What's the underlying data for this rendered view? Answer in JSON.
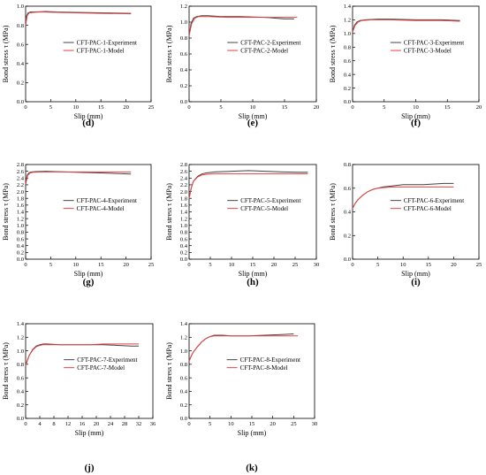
{
  "chart_data": [
    {
      "type": "line",
      "panel_label": "(d)",
      "xlabel": "Slip (mm)",
      "ylabel": "Bond stress τ (MPa)",
      "xlim": [
        0,
        25
      ],
      "ylim": [
        0,
        1.0
      ],
      "xticks": [
        0,
        5,
        10,
        15,
        20,
        25
      ],
      "yticks": [
        0.0,
        0.2,
        0.4,
        0.6,
        0.8,
        1.0
      ],
      "xtick_labels": [
        "0",
        "5",
        "10",
        "15",
        "20",
        "25"
      ],
      "ytick_labels": [
        "0.0",
        "0.2",
        "0.4",
        "0.6",
        "0.8",
        "1.0"
      ],
      "legend_position": "center-right",
      "series": [
        {
          "name": "CFT-PAC-1-Experiment",
          "color": "#444444",
          "x": [
            0,
            0.2,
            0.5,
            1,
            2,
            4,
            6,
            10,
            15,
            21
          ],
          "y": [
            0.78,
            0.9,
            0.93,
            0.94,
            0.94,
            0.945,
            0.94,
            0.935,
            0.93,
            0.925
          ]
        },
        {
          "name": "CFT-PAC-1-Model",
          "color": "#e84040",
          "x": [
            0,
            0.3,
            0.7,
            1.5,
            3,
            6,
            10,
            15,
            21
          ],
          "y": [
            0.8,
            0.9,
            0.93,
            0.935,
            0.94,
            0.935,
            0.93,
            0.925,
            0.92
          ]
        }
      ]
    },
    {
      "type": "line",
      "panel_label": "(e)",
      "xlabel": "Slip (mm)",
      "ylabel": "Bond stress τ (MPa)",
      "xlim": [
        0,
        20
      ],
      "ylim": [
        0,
        1.2
      ],
      "xticks": [
        0,
        5,
        10,
        15,
        20
      ],
      "yticks": [
        0.0,
        0.2,
        0.4,
        0.6,
        0.8,
        1.0,
        1.2
      ],
      "xtick_labels": [
        "0",
        "5",
        "10",
        "15",
        "20"
      ],
      "ytick_labels": [
        "0.0",
        "0.2",
        "0.4",
        "0.6",
        "0.8",
        "1.0",
        "1.2"
      ],
      "legend_position": "center-right",
      "series": [
        {
          "name": "CFT-PAC-2-Experiment",
          "color": "#444444",
          "x": [
            0,
            0.3,
            0.7,
            1.2,
            2,
            3,
            5,
            8,
            12,
            15,
            16.5
          ],
          "y": [
            0.82,
            0.98,
            1.05,
            1.07,
            1.08,
            1.08,
            1.07,
            1.07,
            1.06,
            1.04,
            1.04
          ]
        },
        {
          "name": "CFT-PAC-2-Model",
          "color": "#e84040",
          "x": [
            0,
            0.4,
            0.9,
            1.5,
            3,
            6,
            10,
            14,
            17
          ],
          "y": [
            0.83,
            0.98,
            1.05,
            1.07,
            1.07,
            1.06,
            1.06,
            1.06,
            1.06
          ]
        }
      ]
    },
    {
      "type": "line",
      "panel_label": "(f)",
      "xlabel": "Slip (mm)",
      "ylabel": "Bond stress τ (MPa)",
      "xlim": [
        0,
        20
      ],
      "ylim": [
        0,
        1.4
      ],
      "xticks": [
        0,
        5,
        10,
        15,
        20
      ],
      "yticks": [
        0.0,
        0.2,
        0.4,
        0.6,
        0.8,
        1.0,
        1.2,
        1.4
      ],
      "xtick_labels": [
        "0",
        "5",
        "10",
        "15",
        "20"
      ],
      "ytick_labels": [
        "0.0",
        "0.2",
        "0.4",
        "0.6",
        "0.8",
        "1.0",
        "1.2",
        "1.4"
      ],
      "legend_position": "center-right",
      "series": [
        {
          "name": "CFT-PAC-3-Experiment",
          "color": "#444444",
          "x": [
            0,
            0.3,
            0.7,
            1.2,
            2,
            4,
            6,
            10,
            14,
            17
          ],
          "y": [
            1.02,
            1.12,
            1.17,
            1.19,
            1.2,
            1.21,
            1.21,
            1.2,
            1.2,
            1.19
          ]
        },
        {
          "name": "CFT-PAC-3-Model",
          "color": "#e84040",
          "x": [
            0,
            0.4,
            0.9,
            1.5,
            3,
            6,
            10,
            14,
            17
          ],
          "y": [
            1.02,
            1.12,
            1.17,
            1.19,
            1.2,
            1.2,
            1.19,
            1.19,
            1.18
          ]
        }
      ]
    },
    {
      "type": "line",
      "panel_label": "(g)",
      "xlabel": "Slip (mm)",
      "ylabel": "Bond stress τ (MPa)",
      "xlim": [
        0,
        25
      ],
      "ylim": [
        0,
        2.8
      ],
      "xticks": [
        0,
        5,
        10,
        15,
        20,
        25
      ],
      "yticks": [
        0.0,
        0.2,
        0.4,
        0.6,
        0.8,
        1.0,
        1.2,
        1.4,
        1.6,
        1.8,
        2.0,
        2.2,
        2.4,
        2.6,
        2.8
      ],
      "xtick_labels": [
        "0",
        "5",
        "10",
        "15",
        "20",
        "25"
      ],
      "ytick_labels": [
        "0.0",
        "0.2",
        "0.4",
        "0.6",
        "0.8",
        "1.0",
        "1.2",
        "1.4",
        "1.6",
        "1.8",
        "2.0",
        "2.2",
        "2.4",
        "2.6",
        "2.8"
      ],
      "legend_position": "center-right",
      "series": [
        {
          "name": "CFT-PAC-4-Experiment",
          "color": "#444444",
          "x": [
            0,
            0.3,
            0.7,
            1.2,
            2,
            4,
            6,
            10,
            15,
            21
          ],
          "y": [
            2.2,
            2.48,
            2.56,
            2.58,
            2.59,
            2.6,
            2.59,
            2.57,
            2.55,
            2.52
          ]
        },
        {
          "name": "CFT-PAC-4-Model",
          "color": "#e84040",
          "x": [
            0,
            0.4,
            0.9,
            1.5,
            3,
            6,
            10,
            15,
            21
          ],
          "y": [
            2.22,
            2.48,
            2.55,
            2.57,
            2.58,
            2.58,
            2.58,
            2.58,
            2.58
          ]
        }
      ]
    },
    {
      "type": "line",
      "panel_label": "(h)",
      "xlabel": "Slip (mm)",
      "ylabel": "Bond stress τ (MPa)",
      "xlim": [
        0,
        30
      ],
      "ylim": [
        0,
        2.8
      ],
      "xticks": [
        0,
        5,
        10,
        15,
        20,
        25,
        30
      ],
      "yticks": [
        0.0,
        0.2,
        0.4,
        0.6,
        0.8,
        1.0,
        1.2,
        1.4,
        1.6,
        1.8,
        2.0,
        2.2,
        2.4,
        2.6,
        2.8
      ],
      "xtick_labels": [
        "0",
        "5",
        "10",
        "15",
        "20",
        "25",
        "30"
      ],
      "ytick_labels": [
        "0.0",
        "0.2",
        "0.4",
        "0.6",
        "0.8",
        "1.0",
        "1.2",
        "1.4",
        "1.6",
        "1.8",
        "2.0",
        "2.2",
        "2.4",
        "2.6",
        "2.8"
      ],
      "legend_position": "center-right",
      "series": [
        {
          "name": "CFT-PAC-5-Experiment",
          "color": "#444444",
          "x": [
            0,
            0.5,
            1,
            2,
            3,
            4,
            6,
            10,
            14,
            18,
            22,
            26,
            28
          ],
          "y": [
            1.8,
            2.1,
            2.3,
            2.45,
            2.52,
            2.55,
            2.58,
            2.6,
            2.62,
            2.6,
            2.58,
            2.57,
            2.57
          ]
        },
        {
          "name": "CFT-PAC-5-Model",
          "color": "#e84040",
          "x": [
            0,
            0.5,
            1,
            2,
            3,
            4,
            6,
            10,
            15,
            20,
            25,
            28
          ],
          "y": [
            1.8,
            2.1,
            2.3,
            2.43,
            2.49,
            2.51,
            2.53,
            2.53,
            2.53,
            2.53,
            2.53,
            2.53
          ]
        }
      ]
    },
    {
      "type": "line",
      "panel_label": "(i)",
      "xlabel": "Slip (mm)",
      "ylabel": "Bond stress τ (MPa)",
      "xlim": [
        0,
        25
      ],
      "ylim": [
        0,
        0.8
      ],
      "xticks": [
        0,
        5,
        10,
        15,
        20,
        25
      ],
      "yticks": [
        0.0,
        0.2,
        0.4,
        0.6,
        0.8
      ],
      "xtick_labels": [
        "0",
        "5",
        "10",
        "15",
        "20",
        "25"
      ],
      "ytick_labels": [
        "0.0",
        "0.2",
        "0.4",
        "0.6",
        "0.8"
      ],
      "legend_position": "center-right",
      "series": [
        {
          "name": "CFT-PAC-6-Experiment",
          "color": "#444444",
          "x": [
            0,
            0.5,
            1,
            2,
            3,
            4,
            5,
            6,
            8,
            10,
            14,
            18,
            20
          ],
          "y": [
            0.43,
            0.47,
            0.5,
            0.54,
            0.57,
            0.59,
            0.6,
            0.61,
            0.62,
            0.63,
            0.63,
            0.64,
            0.64
          ]
        },
        {
          "name": "CFT-PAC-6-Model",
          "color": "#e84040",
          "x": [
            0,
            0.5,
            1,
            2,
            3,
            4,
            5,
            6,
            8,
            10,
            14,
            18,
            20
          ],
          "y": [
            0.43,
            0.47,
            0.5,
            0.54,
            0.57,
            0.59,
            0.6,
            0.605,
            0.61,
            0.61,
            0.61,
            0.61,
            0.61
          ]
        }
      ]
    },
    {
      "type": "line",
      "panel_label": "(j)",
      "xlabel": "Slip (mm)",
      "ylabel": "Bond stress τ (MPa)",
      "xlim": [
        0,
        36
      ],
      "ylim": [
        0,
        1.4
      ],
      "xticks": [
        0,
        4,
        8,
        12,
        16,
        20,
        24,
        28,
        32,
        36
      ],
      "yticks": [
        0.0,
        0.2,
        0.4,
        0.6,
        0.8,
        1.0,
        1.2,
        1.4
      ],
      "xtick_labels": [
        "0",
        "4",
        "8",
        "12",
        "16",
        "20",
        "24",
        "28",
        "32",
        "36"
      ],
      "ytick_labels": [
        "0.0",
        "0.2",
        "0.4",
        "0.6",
        "0.8",
        "1.0",
        "1.2",
        "1.4"
      ],
      "legend_position": "center-right",
      "series": [
        {
          "name": "CFT-PAC-7-Experiment",
          "color": "#444444",
          "x": [
            0,
            0.5,
            1,
            2,
            3,
            4,
            5,
            6,
            10,
            14,
            18,
            22,
            26,
            30,
            32
          ],
          "y": [
            0.78,
            0.86,
            0.93,
            1.02,
            1.07,
            1.09,
            1.1,
            1.1,
            1.09,
            1.09,
            1.09,
            1.09,
            1.08,
            1.07,
            1.07
          ]
        },
        {
          "name": "CFT-PAC-7-Model",
          "color": "#e84040",
          "x": [
            0,
            0.5,
            1,
            2,
            3,
            4,
            5,
            6,
            10,
            14,
            18,
            22,
            26,
            30,
            32
          ],
          "y": [
            0.78,
            0.86,
            0.93,
            1.01,
            1.06,
            1.08,
            1.09,
            1.09,
            1.09,
            1.09,
            1.09,
            1.1,
            1.1,
            1.1,
            1.1
          ]
        }
      ]
    },
    {
      "type": "line",
      "panel_label": "(k)",
      "xlabel": "Slip (mm)",
      "ylabel": "Bond stress τ (MPa)",
      "xlim": [
        0,
        30
      ],
      "ylim": [
        0,
        1.4
      ],
      "xticks": [
        0,
        5,
        10,
        15,
        20,
        25,
        30
      ],
      "yticks": [
        0.0,
        0.2,
        0.4,
        0.6,
        0.8,
        1.0,
        1.2,
        1.4
      ],
      "xtick_labels": [
        "0",
        "5",
        "10",
        "15",
        "20",
        "25",
        "30"
      ],
      "ytick_labels": [
        "0.0",
        "0.2",
        "0.4",
        "0.6",
        "0.8",
        "1.0",
        "1.2",
        "1.4"
      ],
      "legend_position": "center-right",
      "series": [
        {
          "name": "CFT-PAC-8-Experiment",
          "color": "#444444",
          "x": [
            0,
            0.5,
            1,
            2,
            3,
            4,
            5,
            6,
            8,
            10,
            14,
            18,
            22,
            25
          ],
          "y": [
            0.85,
            0.92,
            0.98,
            1.06,
            1.13,
            1.18,
            1.21,
            1.23,
            1.23,
            1.22,
            1.22,
            1.23,
            1.24,
            1.25
          ]
        },
        {
          "name": "CFT-PAC-8-Model",
          "color": "#e84040",
          "x": [
            0,
            0.5,
            1,
            2,
            3,
            4,
            5,
            6,
            8,
            10,
            14,
            18,
            22,
            26
          ],
          "y": [
            0.85,
            0.92,
            0.98,
            1.06,
            1.13,
            1.18,
            1.21,
            1.22,
            1.22,
            1.22,
            1.22,
            1.22,
            1.22,
            1.22
          ]
        }
      ]
    }
  ]
}
